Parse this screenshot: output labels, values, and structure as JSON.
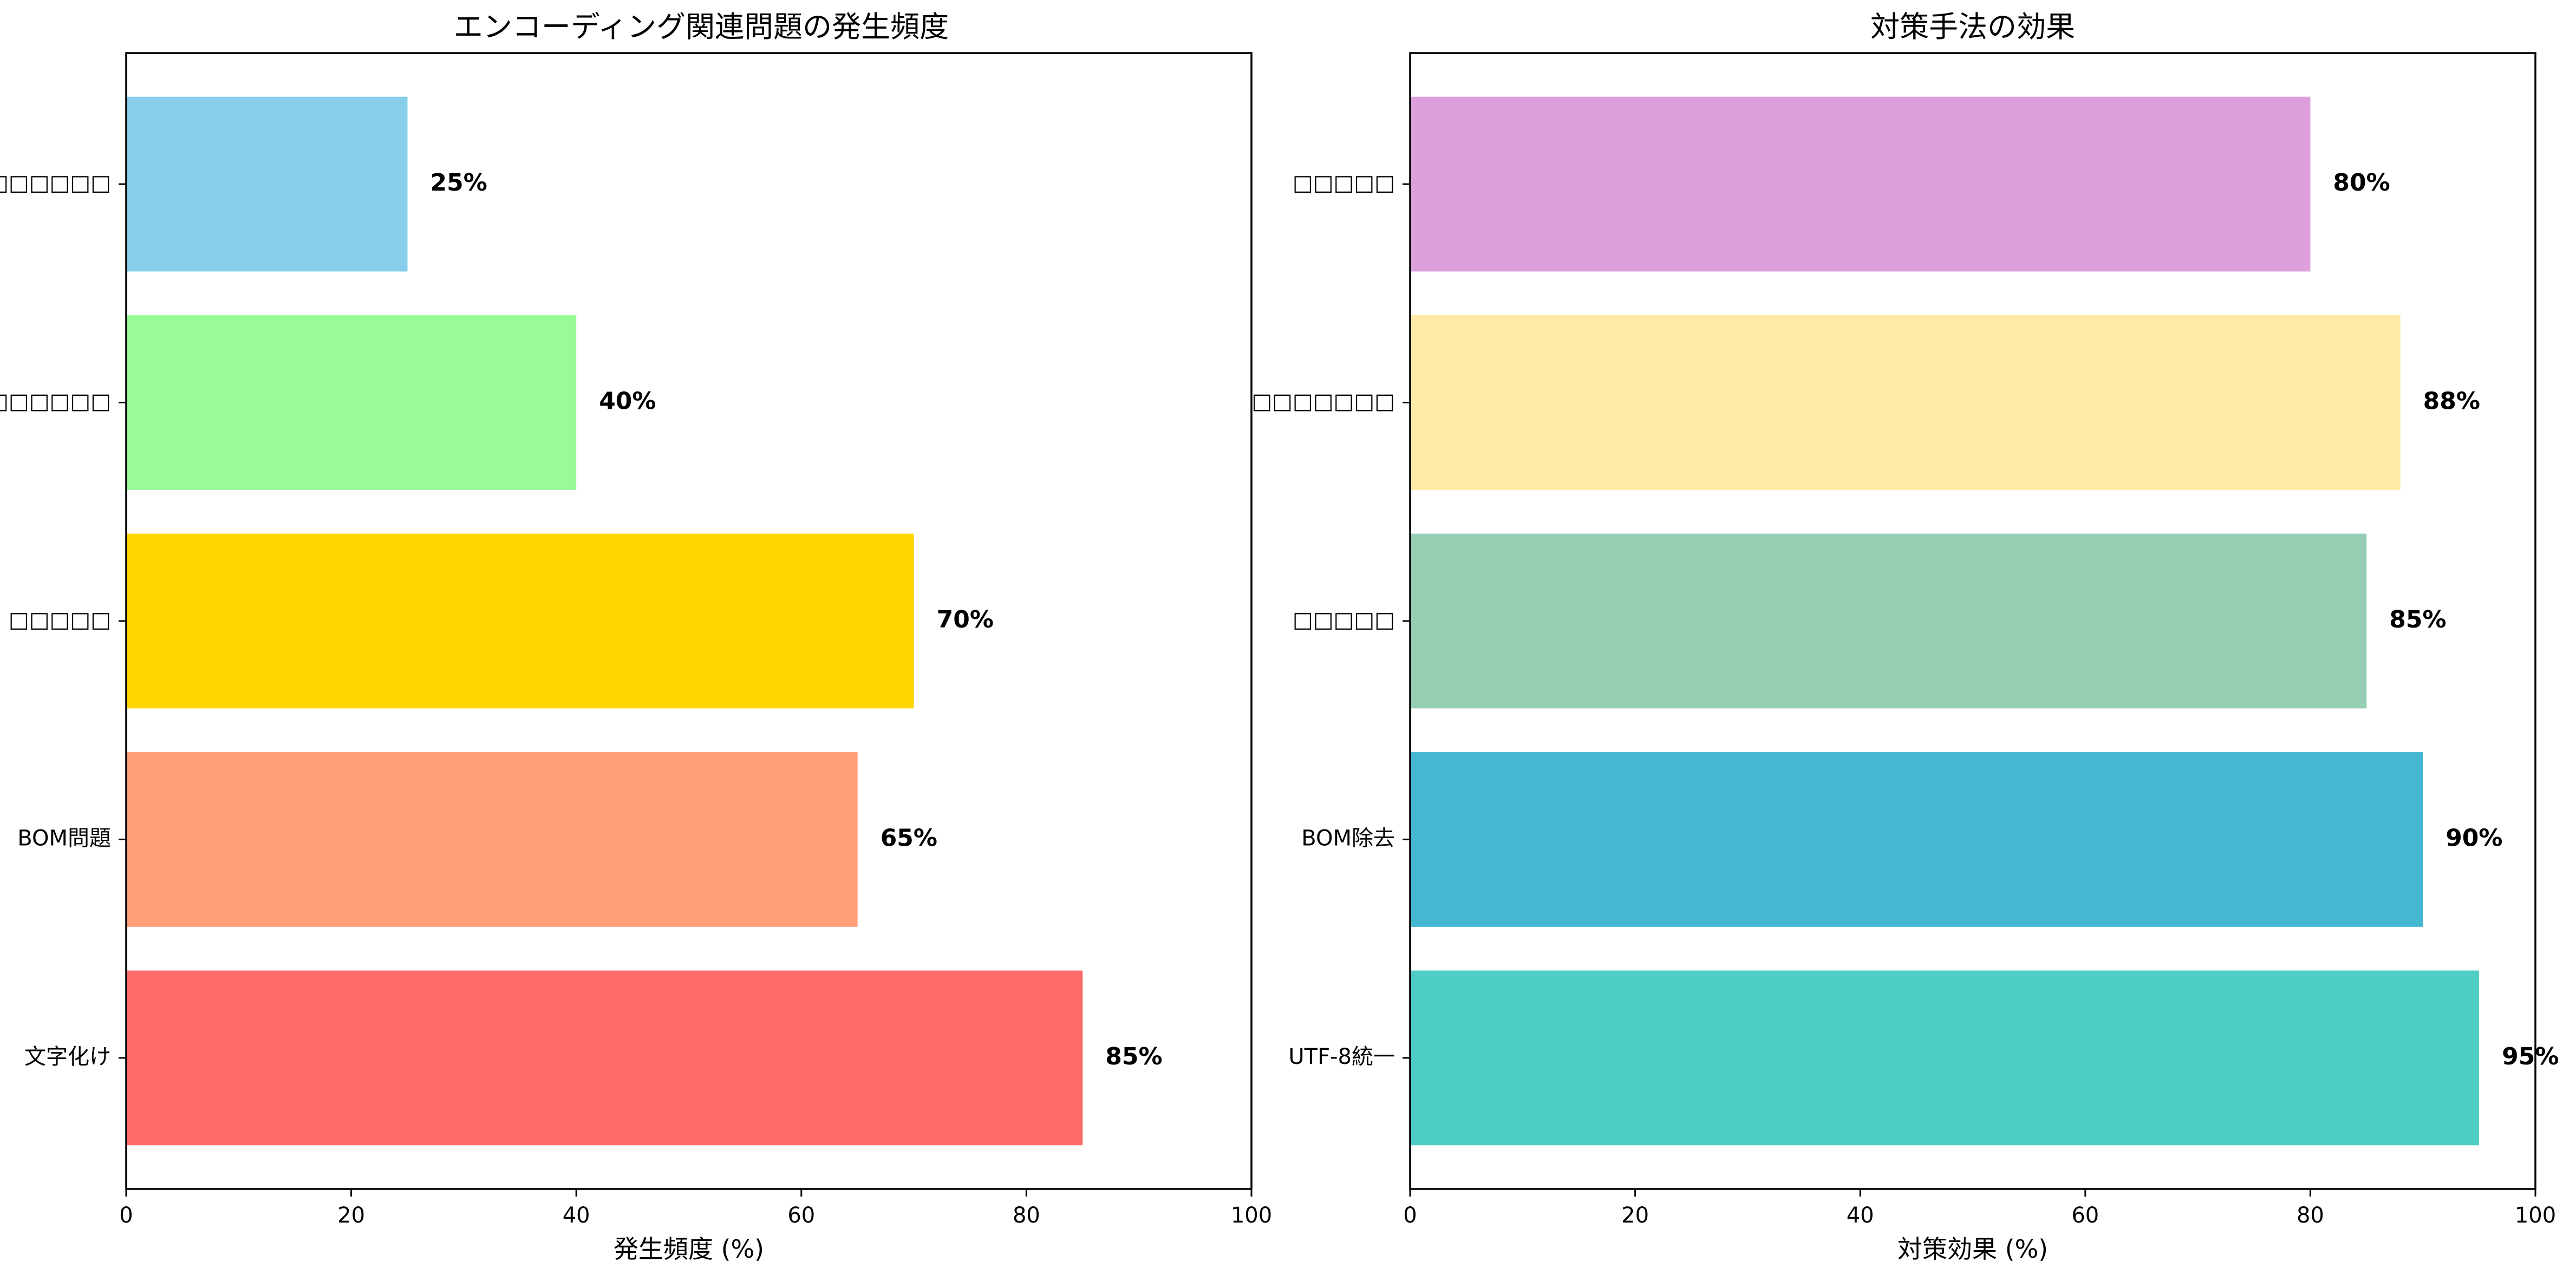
{
  "chart_data": [
    {
      "type": "bar",
      "orientation": "horizontal",
      "title": "エンコーディング関連問題の発生頻度",
      "xlabel": "発生頻度 (%)",
      "ylabel": "",
      "xlim": [
        0,
        100
      ],
      "xticks": [
        0,
        20,
        40,
        60,
        80,
        100
      ],
      "categories": [
        "文字化け",
        "BOM問題",
        "□□□□□",
        "□□□□□□□",
        "□□□□□□"
      ],
      "values": [
        85,
        65,
        70,
        40,
        25
      ],
      "value_labels": [
        "85%",
        "65%",
        "70%",
        "40%",
        "25%"
      ],
      "colors": [
        "#FF6B6B",
        "#FFA07A",
        "#FFD700",
        "#98FB98",
        "#87CEEB"
      ],
      "grid": false,
      "legend": "none"
    },
    {
      "type": "bar",
      "orientation": "horizontal",
      "title": "対策手法の効果",
      "xlabel": "対策効果 (%)",
      "ylabel": "",
      "xlim": [
        0,
        100
      ],
      "xticks": [
        0,
        20,
        40,
        60,
        80,
        100
      ],
      "categories": [
        "UTF-8統一",
        "BOM除去",
        "□□□□□",
        "□□□□□□□",
        "□□□□□"
      ],
      "values": [
        95,
        90,
        85,
        88,
        80
      ],
      "value_labels": [
        "95%",
        "90%",
        "85%",
        "88%",
        "80%"
      ],
      "colors": [
        "#4ECDC4",
        "#45B7D1",
        "#96CEB4",
        "#FFEAA7",
        "#DDA0DD"
      ],
      "grid": false,
      "legend": "none"
    }
  ]
}
